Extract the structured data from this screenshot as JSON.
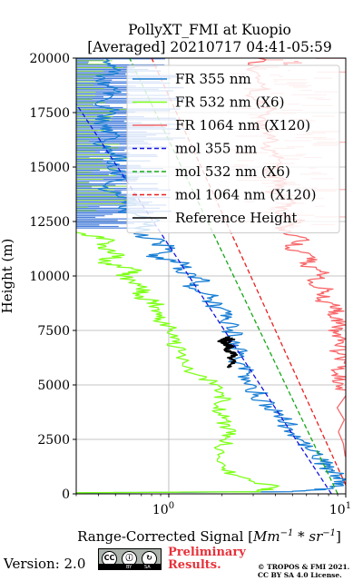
{
  "chart_data": {
    "type": "line",
    "title": [
      "PollyXT_FMI at Kuopio",
      "[Averaged] 20210717 04:41-05:59"
    ],
    "xlabel": "Range-Corrected Signal [Mm⁻¹ * sr⁻¹]",
    "ylabel": "Height (m)",
    "xscale": "log",
    "xlim": [
      0.3,
      10
    ],
    "ylim": [
      0,
      20000
    ],
    "yticks": [
      0,
      2500,
      5000,
      7500,
      10000,
      12500,
      15000,
      17500,
      20000
    ],
    "ytick_labels": [
      "0",
      "2500",
      "5000",
      "7500",
      "10000",
      "12500",
      "15000",
      "17500",
      "20000"
    ],
    "xticks": [
      1,
      10
    ],
    "grid": true,
    "legend_position": "top-right",
    "series": [
      {
        "name": "FR 355 nm",
        "color": "#1a7fd4",
        "style": "solid",
        "points": [
          [
            0.3,
            50
          ],
          [
            5,
            100
          ],
          [
            8.5,
            250
          ],
          [
            9.8,
            600
          ],
          [
            9.3,
            900
          ],
          [
            8,
            1200
          ],
          [
            7.2,
            1500
          ],
          [
            6.3,
            2000
          ],
          [
            5.5,
            2500
          ],
          [
            4.9,
            3000
          ],
          [
            4.3,
            3500
          ],
          [
            3.8,
            4000
          ],
          [
            3.2,
            4500
          ],
          [
            3.0,
            5000
          ],
          [
            2.75,
            5500
          ],
          [
            2.5,
            6000
          ],
          [
            2.45,
            6500
          ],
          [
            2.3,
            7000
          ],
          [
            2.3,
            7500
          ],
          [
            2.05,
            8000
          ],
          [
            2.1,
            8300
          ],
          [
            1.7,
            8800
          ],
          [
            1.9,
            9100
          ],
          [
            1.3,
            9500
          ],
          [
            1.7,
            9800
          ],
          [
            1.1,
            10200
          ],
          [
            1.3,
            10600
          ],
          [
            0.75,
            10900
          ],
          [
            1.0,
            11200
          ],
          [
            0.9,
            11500
          ],
          [
            0.65,
            12000
          ],
          [
            0.85,
            12500
          ],
          [
            0.55,
            13000
          ],
          [
            0.65,
            13500
          ],
          [
            0.4,
            14000
          ],
          [
            0.6,
            14500
          ],
          [
            0.45,
            15000
          ],
          [
            0.55,
            15500
          ],
          [
            0.4,
            16000
          ],
          [
            0.5,
            16500
          ],
          [
            0.38,
            17000
          ],
          [
            0.5,
            17500
          ],
          [
            0.4,
            18000
          ],
          [
            0.5,
            18500
          ],
          [
            0.4,
            19000
          ],
          [
            0.5,
            19500
          ],
          [
            0.45,
            20000
          ]
        ]
      },
      {
        "name": "FR 532 nm (X6)",
        "color": "#7fff1a",
        "style": "solid",
        "points": [
          [
            0.3,
            50
          ],
          [
            3.3,
            100
          ],
          [
            4.0,
            300
          ],
          [
            2.5,
            800
          ],
          [
            2.0,
            1200
          ],
          [
            2.0,
            2000
          ],
          [
            2.1,
            2500
          ],
          [
            2.15,
            3000
          ],
          [
            2.0,
            3500
          ],
          [
            1.9,
            4000
          ],
          [
            2.05,
            4500
          ],
          [
            1.9,
            5000
          ],
          [
            1.4,
            5500
          ],
          [
            1.15,
            6500
          ],
          [
            1.05,
            7000
          ],
          [
            1.05,
            7500
          ],
          [
            0.9,
            8000
          ],
          [
            0.8,
            8400
          ],
          [
            0.85,
            8800
          ],
          [
            0.65,
            9100
          ],
          [
            0.75,
            9500
          ],
          [
            0.55,
            10000
          ],
          [
            0.65,
            10300
          ],
          [
            0.4,
            10600
          ],
          [
            0.55,
            11000
          ],
          [
            0.4,
            11300
          ],
          [
            0.45,
            11700
          ],
          [
            0.3,
            12000
          ]
        ]
      },
      {
        "name": "FR 1064 nm (X120)",
        "color": "#f7686b",
        "style": "solid",
        "points": [
          [
            10,
            100
          ],
          [
            10,
            4500
          ],
          [
            9.5,
            5000
          ],
          [
            9.0,
            5500
          ],
          [
            9.8,
            6000
          ],
          [
            9.0,
            6500
          ],
          [
            9.7,
            7000
          ],
          [
            8.5,
            7400
          ],
          [
            9.5,
            7800
          ],
          [
            8.0,
            8200
          ],
          [
            9.5,
            8500
          ],
          [
            7.2,
            8900
          ],
          [
            8.0,
            9300
          ],
          [
            6.5,
            9700
          ],
          [
            7.5,
            10100
          ],
          [
            5.7,
            10500
          ],
          [
            6.5,
            10900
          ],
          [
            4.8,
            11300
          ],
          [
            6.0,
            11700
          ],
          [
            4.2,
            12100
          ],
          [
            5.5,
            12500
          ],
          [
            4.0,
            12900
          ],
          [
            5.0,
            13400
          ],
          [
            3.8,
            13800
          ],
          [
            4.5,
            14300
          ],
          [
            3.7,
            14800
          ],
          [
            4.2,
            15300
          ],
          [
            3.5,
            15800
          ],
          [
            4.0,
            16400
          ],
          [
            3.2,
            17000
          ],
          [
            3.8,
            17600
          ],
          [
            3.0,
            18200
          ],
          [
            3.5,
            18800
          ],
          [
            3.0,
            19400
          ],
          [
            3.2,
            20000
          ]
        ]
      },
      {
        "name": "mol 355 nm",
        "color": "#1515e0",
        "style": "dashed",
        "points": [
          [
            8.3,
            0
          ],
          [
            0.3,
            17900
          ]
        ]
      },
      {
        "name": "mol 532 nm (X6)",
        "color": "#16a816",
        "style": "dashed",
        "points": [
          [
            9.0,
            0
          ],
          [
            0.6,
            20000
          ]
        ]
      },
      {
        "name": "mol 1064 nm (X120)",
        "color": "#ea1f1f",
        "style": "dashed",
        "points": [
          [
            10,
            400
          ],
          [
            0.8,
            20000
          ]
        ]
      },
      {
        "name": "Reference Height",
        "color": "#000000",
        "style": "solid",
        "points": [
          [
            2.2,
            5800
          ],
          [
            2.35,
            6000
          ],
          [
            2.2,
            6200
          ],
          [
            2.4,
            6400
          ],
          [
            2.1,
            6600
          ],
          [
            2.3,
            6800
          ],
          [
            1.9,
            7000
          ],
          [
            2.2,
            7200
          ],
          [
            2.05,
            7000
          ],
          [
            2.25,
            6700
          ],
          [
            2.1,
            6900
          ],
          [
            2.3,
            7150
          ]
        ]
      }
    ]
  },
  "footer": {
    "version": "Version: 2.0",
    "license_badge": [
      "CC",
      "BY",
      "SA"
    ],
    "notice": [
      "Preliminary",
      "Results."
    ],
    "copyright": [
      "© TROPOS & FMI 2021.",
      "CC BY SA 4.0 License."
    ]
  }
}
